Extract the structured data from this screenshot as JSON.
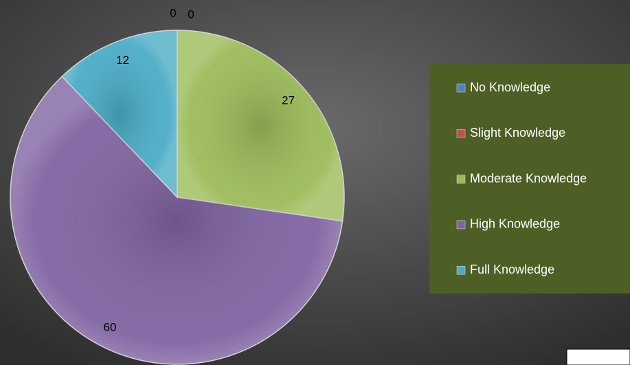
{
  "chart_data": {
    "type": "pie",
    "categories": [
      "No Knowledge",
      "Slight Knowledge",
      "Moderate Knowledge",
      "High Knowledge",
      "Full Knowledge"
    ],
    "values": [
      0,
      0,
      27,
      60,
      12
    ],
    "colors": [
      "#4f81bd",
      "#c0504d",
      "#9bbb59",
      "#8064a2",
      "#4bacc6"
    ],
    "legend": "right"
  }
}
